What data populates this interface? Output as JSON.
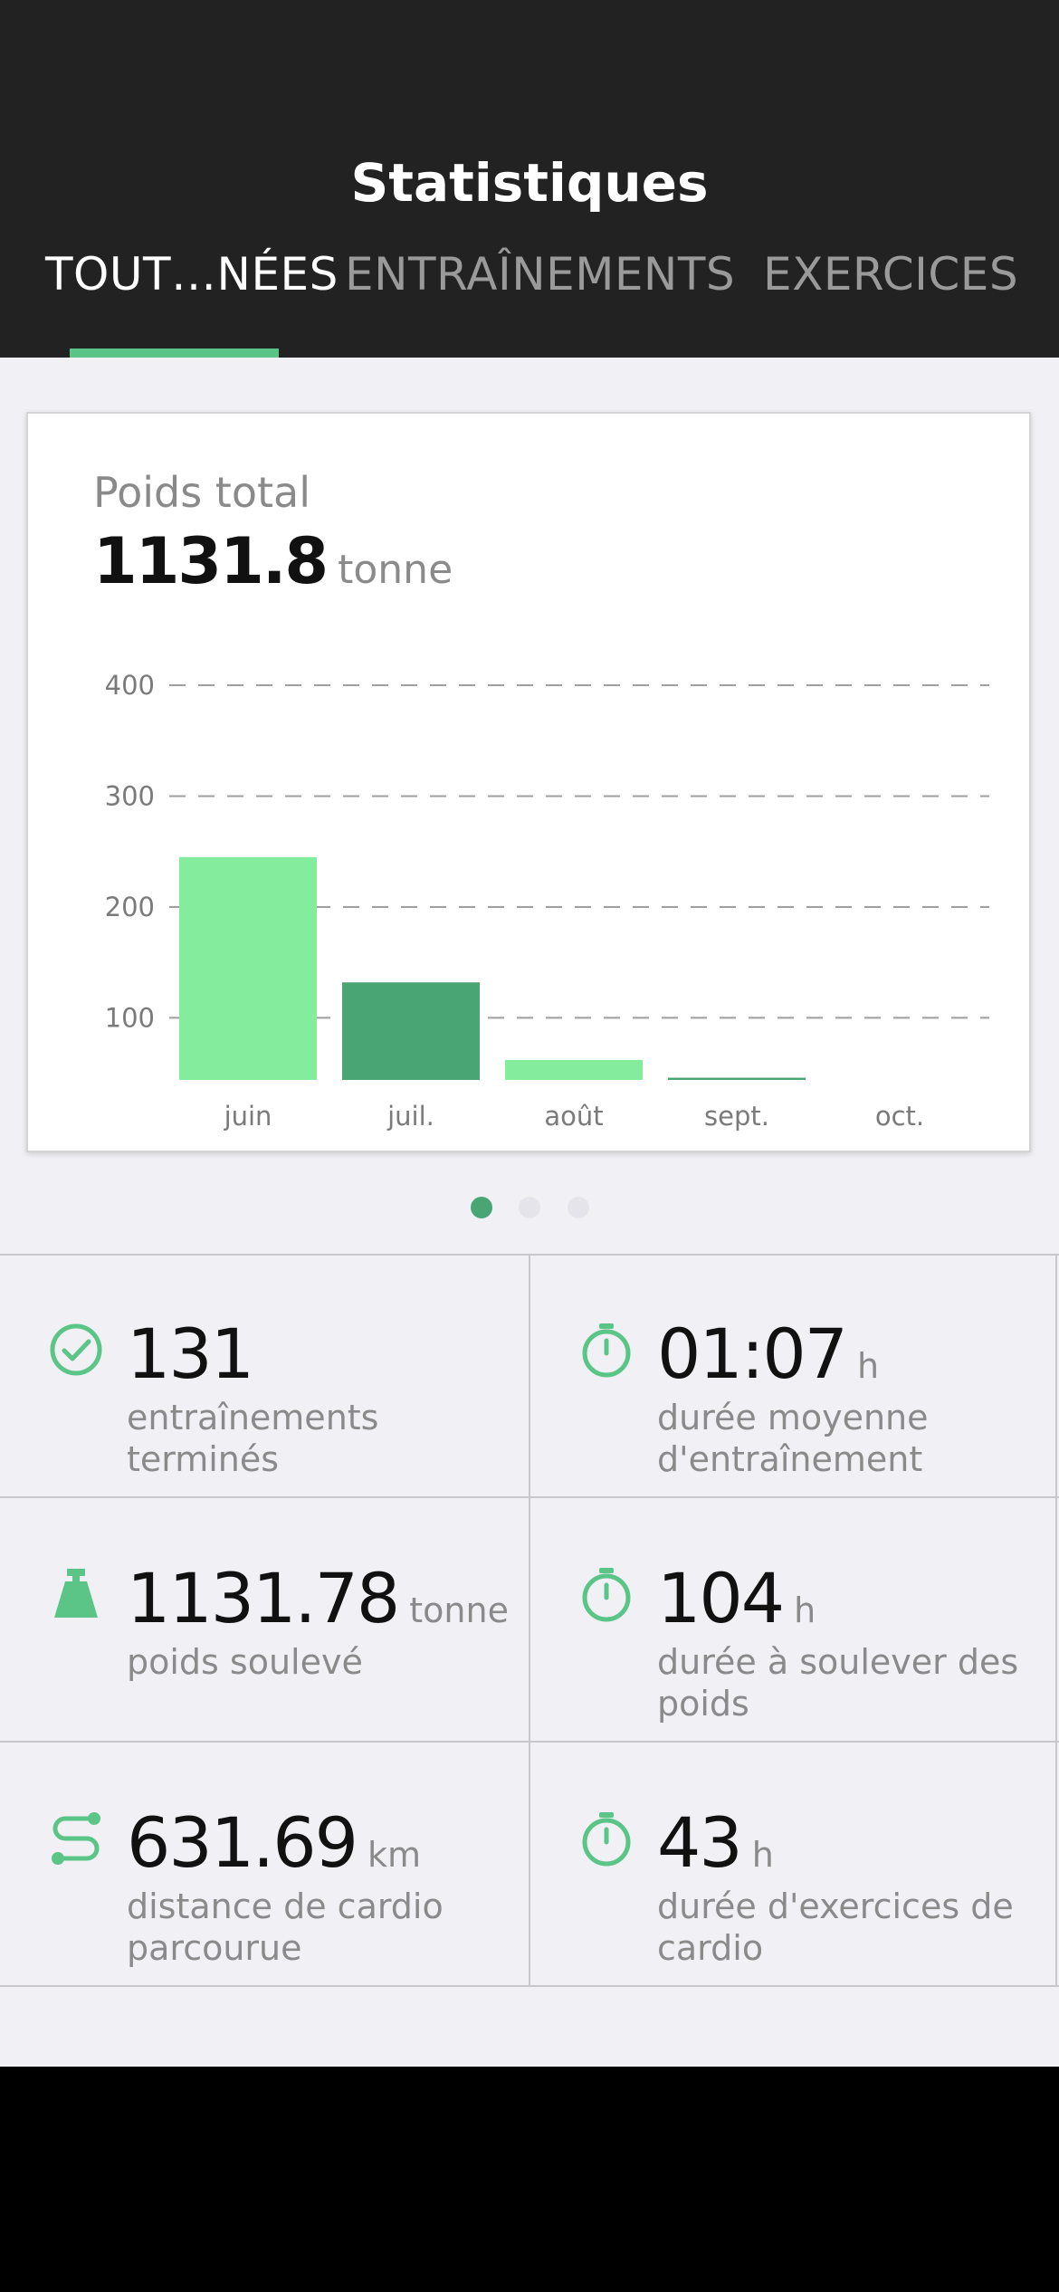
{
  "header": {
    "title": "Statistiques",
    "tabs": [
      {
        "label": "TOUT…NÉES",
        "active": true
      },
      {
        "label": "ENTRAÎNEMENTS",
        "active": false
      },
      {
        "label": "EXERCICES",
        "active": false
      }
    ]
  },
  "card": {
    "title": "Poids total",
    "value": "1131.8",
    "unit": "tonne"
  },
  "chart_data": {
    "type": "bar",
    "categories": [
      "juin",
      "juil.",
      "août",
      "sept.",
      "oct."
    ],
    "values": [
      245,
      132,
      62,
      46,
      0
    ],
    "bar_colors": [
      "#84ec9d",
      "#4aa574",
      "#84ec9d",
      "#4aa574",
      "#84ec9d"
    ],
    "yticks": [
      "100",
      "200",
      "300",
      "400"
    ],
    "ylim": [
      44,
      400
    ],
    "grid": true,
    "title": "",
    "xlabel": "",
    "ylabel": ""
  },
  "pager": {
    "count": 3,
    "active_index": 0
  },
  "stats": [
    {
      "icon": "check-circle-icon",
      "value": "131",
      "unit": "",
      "label": "entraînements terminés"
    },
    {
      "icon": "stopwatch-icon",
      "value": "01:07",
      "unit": "h",
      "label": "durée moyenne d'entraînement"
    },
    {
      "icon": "kettlebell-icon",
      "value": "1131.78",
      "unit": "tonne",
      "label": "poids soulevé"
    },
    {
      "icon": "stopwatch-icon",
      "value": "104",
      "unit": "h",
      "label": "durée à soulever des poids"
    },
    {
      "icon": "route-icon",
      "value": "631.69",
      "unit": "km",
      "label": "distance de cardio parcourue"
    },
    {
      "icon": "stopwatch-icon",
      "value": "43",
      "unit": "h",
      "label": "durée d'exercices de cardio"
    }
  ],
  "colors": {
    "accent": "#5ac587",
    "accent_dark": "#4aa574",
    "header_bg": "#222222",
    "content_bg": "#f1f1f5"
  }
}
